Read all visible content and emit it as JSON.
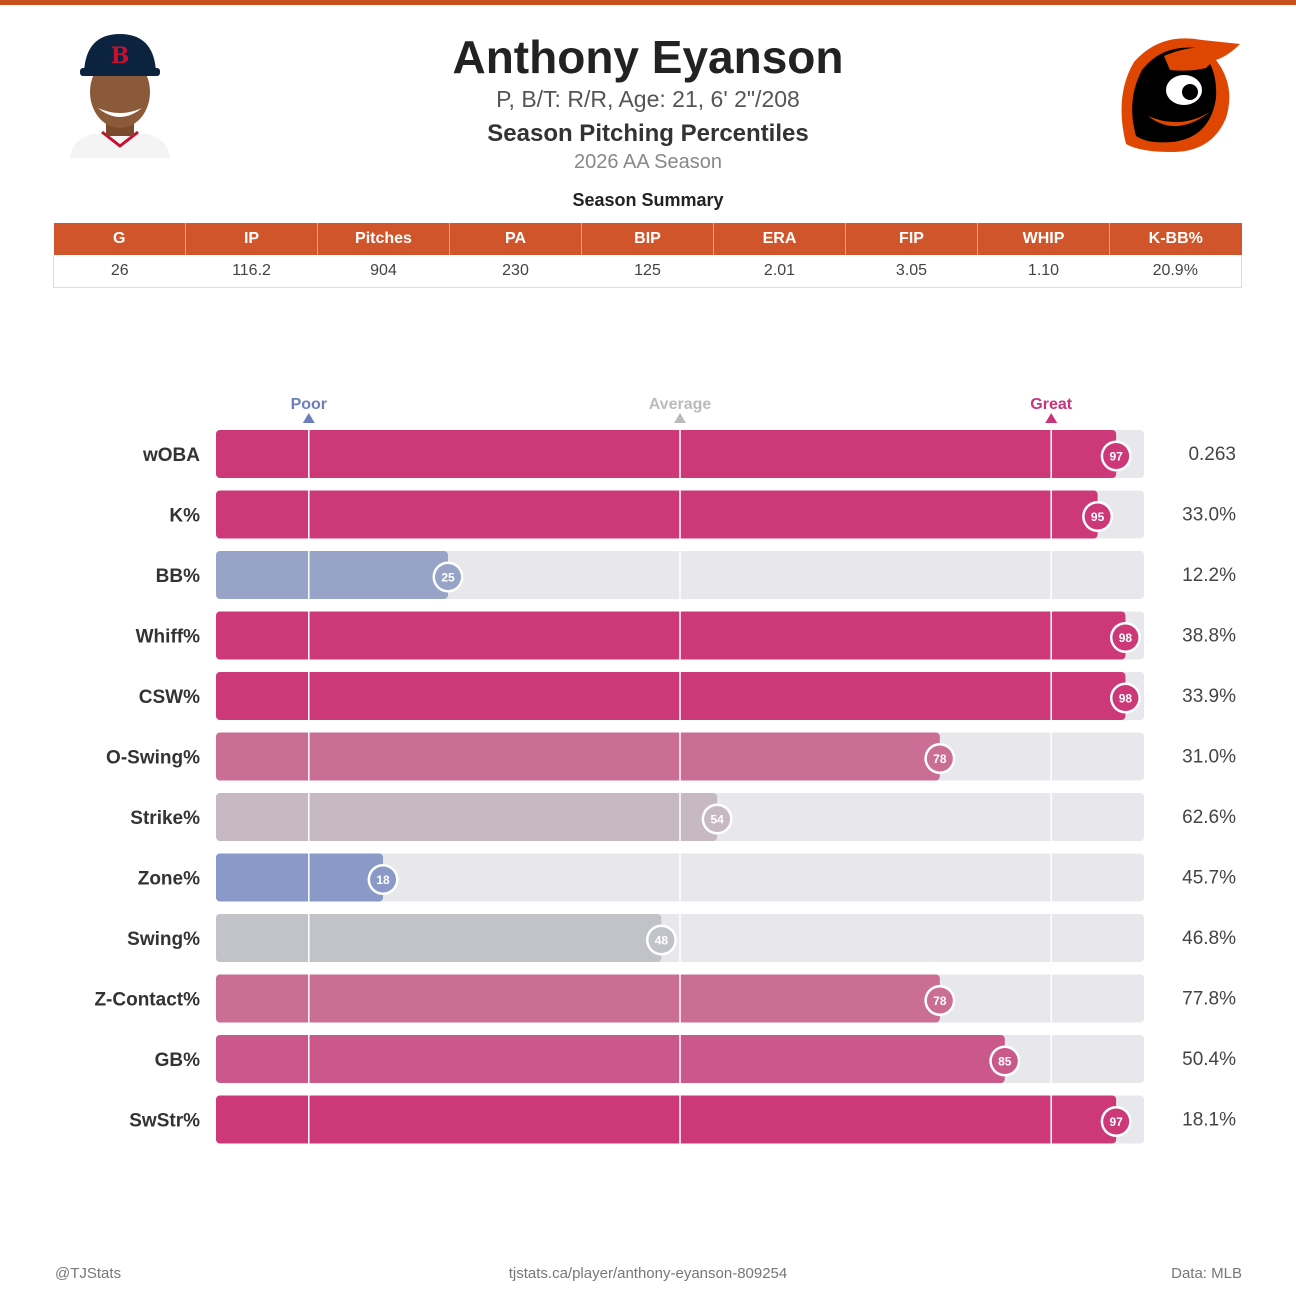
{
  "header": {
    "name": "Anthony Eyanson",
    "bio": "P, B/T: R/R, Age: 21, 6' 2\"/208",
    "chart_title": "Season Pitching Percentiles",
    "season": "2026 AA Season",
    "summary_label": "Season Summary"
  },
  "summary": {
    "headers": [
      "G",
      "IP",
      "Pitches",
      "PA",
      "BIP",
      "ERA",
      "FIP",
      "WHIP",
      "K-BB%"
    ],
    "values": [
      "26",
      "116.2",
      "904",
      "230",
      "125",
      "2.01",
      "3.05",
      "1.10",
      "20.9%"
    ]
  },
  "chart_data": {
    "type": "bar",
    "orientation": "horizontal",
    "xlim": [
      0,
      100
    ],
    "markers": [
      {
        "label": "Poor",
        "value": 10,
        "color": "#6b7fc0"
      },
      {
        "label": "Average",
        "value": 50,
        "color": "#bbbbbb"
      },
      {
        "label": "Great",
        "value": 90,
        "color": "#c9357a"
      }
    ],
    "categories": [
      "wOBA",
      "K%",
      "BB%",
      "Whiff%",
      "CSW%",
      "O-Swing%",
      "Strike%",
      "Zone%",
      "Swing%",
      "Z-Contact%",
      "GB%",
      "SwStr%"
    ],
    "percentiles": [
      97,
      95,
      25,
      98,
      98,
      78,
      54,
      18,
      48,
      78,
      85,
      97
    ],
    "stat_values": [
      "0.263",
      "33.0%",
      "12.2%",
      "38.8%",
      "33.9%",
      "31.0%",
      "62.6%",
      "45.7%",
      "46.8%",
      "77.8%",
      "50.4%",
      "18.1%"
    ],
    "colors": {
      "poor": "#7b8fc8",
      "average": "#c6c6c8",
      "great": "#cc3878",
      "track": "#e8e8ec"
    }
  },
  "footer": {
    "left": "@TJStats",
    "center": "tjstats.ca/player/anthony-eyanson-809254",
    "right": "Data: MLB"
  },
  "icons": {
    "headshot": "player-headshot-icon",
    "logo": "orioles-logo-icon"
  }
}
